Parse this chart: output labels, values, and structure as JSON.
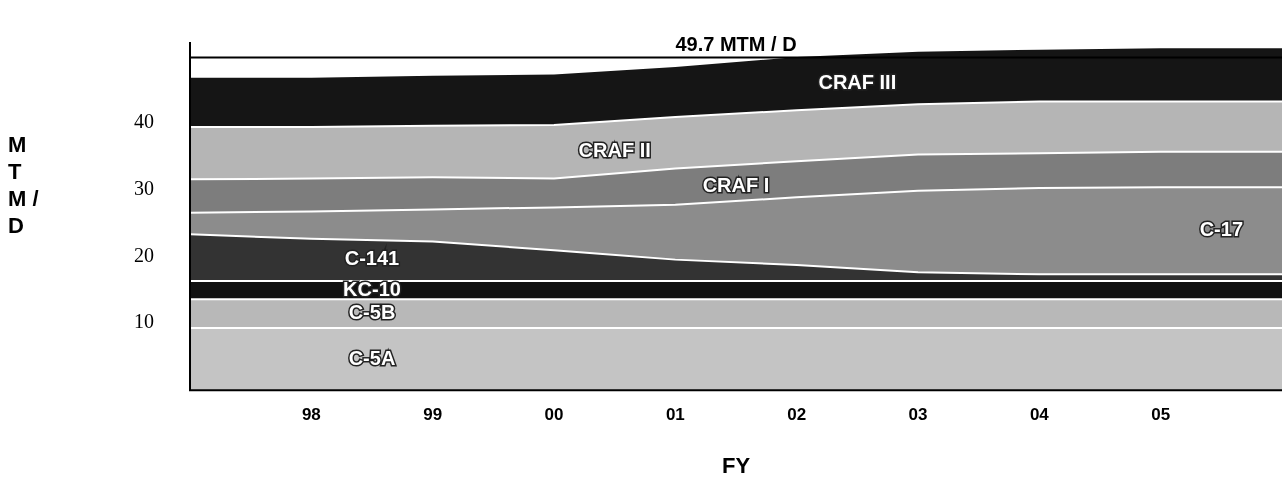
{
  "chart_data": {
    "type": "area",
    "stacked": true,
    "xlabel": "FY",
    "ylabel": "M T M / D",
    "x": [
      1997,
      1998,
      1999,
      2000,
      2001,
      2002,
      2003,
      2004,
      2005,
      2006
    ],
    "xlim": [
      1997,
      2006
    ],
    "xticks": [
      {
        "value": 1998,
        "label": "98"
      },
      {
        "value": 1999,
        "label": "99"
      },
      {
        "value": 2000,
        "label": "00"
      },
      {
        "value": 2001,
        "label": "01"
      },
      {
        "value": 2002,
        "label": "02"
      },
      {
        "value": 2003,
        "label": "03"
      },
      {
        "value": 2004,
        "label": "04"
      },
      {
        "value": 2005,
        "label": "05"
      }
    ],
    "ylim": [
      0,
      52
    ],
    "yticks": [
      10,
      20,
      30,
      40
    ],
    "grid": false,
    "legend": false,
    "ref_lines": [
      {
        "axis": "y",
        "value": 49.7,
        "label": "49.7 MTM / D",
        "color": "#000000"
      }
    ],
    "series": [
      {
        "name": "C-5A",
        "color": "#c4c4c4",
        "values": [
          9.3,
          9.3,
          9.3,
          9.3,
          9.3,
          9.3,
          9.3,
          9.3,
          9.3,
          9.3
        ]
      },
      {
        "name": "C-5B",
        "color": "#b8b8b8",
        "values": [
          4.3,
          4.3,
          4.3,
          4.3,
          4.3,
          4.3,
          4.3,
          4.3,
          4.3,
          4.3
        ]
      },
      {
        "name": "KC-10",
        "color": "#111111",
        "values": [
          2.7,
          2.7,
          2.7,
          2.7,
          2.7,
          2.7,
          2.7,
          2.7,
          2.7,
          2.7
        ]
      },
      {
        "name": "C-141",
        "color": "#333333",
        "values": [
          7.0,
          6.3,
          5.9,
          4.6,
          3.2,
          2.4,
          1.3,
          1.0,
          1.0,
          1.0
        ]
      },
      {
        "name": "C-17",
        "color": "#8c8c8c",
        "values": [
          3.2,
          4.1,
          4.8,
          6.4,
          8.2,
          10.1,
          12.2,
          12.9,
          13.0,
          13.0
        ]
      },
      {
        "name": "CRAF I",
        "color": "#7d7d7d",
        "values": [
          5.0,
          4.9,
          4.8,
          4.3,
          5.4,
          5.4,
          5.4,
          5.2,
          5.3,
          5.3
        ]
      },
      {
        "name": "CRAF II",
        "color": "#b5b5b5",
        "values": [
          7.8,
          7.7,
          7.7,
          8.0,
          7.7,
          7.6,
          7.5,
          7.7,
          7.5,
          7.5
        ]
      },
      {
        "name": "CRAF III",
        "color": "#151515",
        "values": [
          7.5,
          7.5,
          7.6,
          7.7,
          7.6,
          8.1,
          8.0,
          7.9,
          8.1,
          8.1
        ]
      }
    ]
  }
}
